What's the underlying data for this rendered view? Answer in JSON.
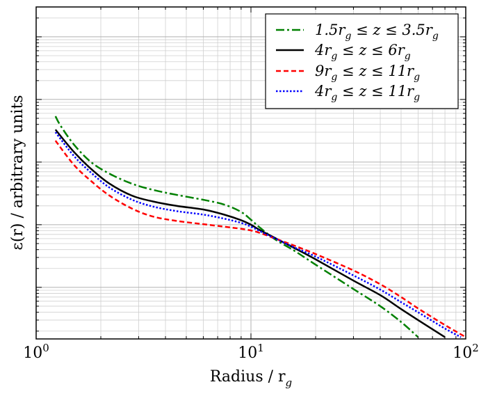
{
  "chart_data": {
    "type": "line",
    "xscale": "log",
    "yscale": "log",
    "xlim": [
      1,
      100
    ],
    "grid": true,
    "legend_position": "top-right",
    "xlabel": "Radius / r",
    "xlabel_sub": "g",
    "ylabel": "ε(r) / arbitrary units",
    "x_ticks": [
      {
        "base": "10",
        "exp": "0"
      },
      {
        "base": "10",
        "exp": "1"
      },
      {
        "base": "10",
        "exp": "2"
      }
    ],
    "series": [
      {
        "name": "1.5r_g ≤ z ≤ 3.5r_g",
        "legend_parts": [
          "1.5r",
          "g",
          " ≤ z ≤ 3.5r",
          "g"
        ],
        "color": "#008000",
        "dash": "dashdot",
        "points": [
          [
            1.23,
            54.0
          ],
          [
            1.3,
            38.0
          ],
          [
            1.5,
            19.0
          ],
          [
            1.8,
            10.0
          ],
          [
            2.2,
            6.5
          ],
          [
            2.8,
            4.5
          ],
          [
            3.5,
            3.6
          ],
          [
            4.5,
            3.0
          ],
          [
            6.0,
            2.5
          ],
          [
            7.5,
            2.1
          ],
          [
            9.0,
            1.6
          ],
          [
            10.0,
            1.2
          ],
          [
            11.0,
            0.9
          ],
          [
            13.0,
            0.58
          ],
          [
            16.0,
            0.38
          ],
          [
            20.0,
            0.23
          ],
          [
            30.0,
            0.094
          ],
          [
            40.0,
            0.05
          ],
          [
            50.0,
            0.028
          ],
          [
            60.0,
            0.016
          ]
        ]
      },
      {
        "name": "4r_g ≤ z ≤ 6r_g",
        "legend_parts": [
          "4r",
          "g",
          " ≤ z ≤ 6r",
          "g"
        ],
        "color": "#000000",
        "dash": "solid",
        "points": [
          [
            1.23,
            33.0
          ],
          [
            1.5,
            14.5
          ],
          [
            1.8,
            7.8
          ],
          [
            2.2,
            4.5
          ],
          [
            2.8,
            2.9
          ],
          [
            3.5,
            2.35
          ],
          [
            4.5,
            2.0
          ],
          [
            6.0,
            1.75
          ],
          [
            7.5,
            1.45
          ],
          [
            9.0,
            1.18
          ],
          [
            10.0,
            1.0
          ],
          [
            11.0,
            0.82
          ],
          [
            13.0,
            0.61
          ],
          [
            16.0,
            0.42
          ],
          [
            20.0,
            0.28
          ],
          [
            30.0,
            0.128
          ],
          [
            40.0,
            0.075
          ],
          [
            50.0,
            0.045
          ],
          [
            60.0,
            0.03
          ],
          [
            80.0,
            0.016
          ]
        ]
      },
      {
        "name": "9r_g ≤ z ≤ 11r_g",
        "legend_parts": [
          "9r",
          "g",
          " ≤ z ≤ 11r",
          "g"
        ],
        "color": "#ff0000",
        "dash": "dashed",
        "points": [
          [
            1.23,
            22.0
          ],
          [
            1.5,
            9.0
          ],
          [
            1.8,
            5.0
          ],
          [
            2.2,
            2.9
          ],
          [
            2.8,
            1.8
          ],
          [
            3.5,
            1.35
          ],
          [
            4.5,
            1.15
          ],
          [
            6.0,
            1.02
          ],
          [
            7.5,
            0.93
          ],
          [
            9.0,
            0.86
          ],
          [
            10.0,
            0.81
          ],
          [
            11.0,
            0.74
          ],
          [
            13.0,
            0.6
          ],
          [
            16.0,
            0.46
          ],
          [
            20.0,
            0.34
          ],
          [
            30.0,
            0.186
          ],
          [
            40.0,
            0.112
          ],
          [
            50.0,
            0.07
          ],
          [
            60.0,
            0.046
          ],
          [
            80.0,
            0.025
          ],
          [
            100.0,
            0.016
          ]
        ]
      },
      {
        "name": "4r_g ≤ z ≤ 11r_g",
        "legend_parts": [
          "4r",
          "g",
          " ≤ z ≤ 11r",
          "g"
        ],
        "color": "#0000ff",
        "dash": "dotted",
        "points": [
          [
            1.23,
            30.0
          ],
          [
            1.5,
            12.5
          ],
          [
            1.8,
            6.8
          ],
          [
            2.2,
            3.9
          ],
          [
            2.8,
            2.5
          ],
          [
            3.5,
            1.95
          ],
          [
            4.5,
            1.65
          ],
          [
            6.0,
            1.45
          ],
          [
            7.5,
            1.25
          ],
          [
            9.0,
            1.07
          ],
          [
            10.0,
            0.93
          ],
          [
            11.0,
            0.79
          ],
          [
            13.0,
            0.6
          ],
          [
            16.0,
            0.43
          ],
          [
            20.0,
            0.31
          ],
          [
            30.0,
            0.155
          ],
          [
            40.0,
            0.092
          ],
          [
            50.0,
            0.058
          ],
          [
            60.0,
            0.04
          ],
          [
            80.0,
            0.022
          ],
          [
            95.0,
            0.016
          ]
        ]
      }
    ]
  }
}
